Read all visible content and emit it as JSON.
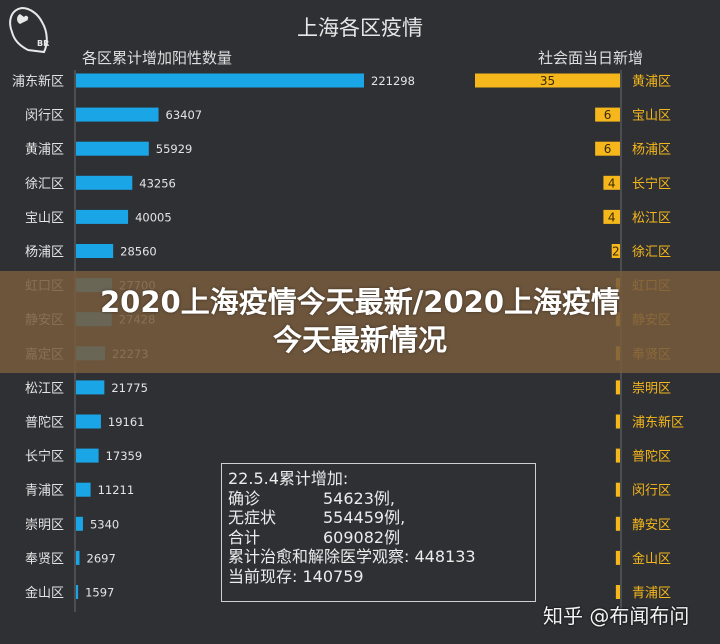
{
  "logo": {
    "text": "BR"
  },
  "chart_data": [
    {
      "type": "bar",
      "orientation": "horizontal",
      "title": "上海各区疫情",
      "subtitle": "各区累计增加阳性数量",
      "categories": [
        "浦东新区",
        "闵行区",
        "黄浦区",
        "徐汇区",
        "宝山区",
        "杨浦区",
        "虹口区",
        "静安区",
        "嘉定区",
        "松江区",
        "普陀区",
        "长宁区",
        "青浦区",
        "崇明区",
        "奉贤区",
        "金山区"
      ],
      "values": [
        221298,
        63407,
        55929,
        43256,
        40005,
        28560,
        27700,
        27428,
        22273,
        21775,
        19161,
        17359,
        11211,
        5340,
        2697,
        1597
      ],
      "color": "#1aa6e6"
    },
    {
      "type": "bar",
      "orientation": "horizontal",
      "subtitle": "社会面当日新增",
      "categories": [
        "黄浦区",
        "宝山区",
        "杨浦区",
        "长宁区",
        "松江区",
        "徐汇区",
        "虹口区",
        "静安区",
        "奉贤区",
        "崇明区",
        "浦东新区",
        "普陀区",
        "闵行区",
        "静安区",
        "金山区",
        "青浦区"
      ],
      "values": [
        35,
        6,
        6,
        4,
        4,
        2,
        1,
        1,
        1,
        1,
        1,
        1,
        1,
        1,
        1,
        1
      ],
      "labels": [
        "35",
        "6",
        "6",
        "4",
        "4",
        "2",
        "",
        "",
        "",
        "",
        "",
        "",
        "",
        "",
        "",
        ""
      ],
      "color": "#f5b71b"
    }
  ],
  "summary": {
    "header": "22.5.4累计增加:",
    "rows": [
      {
        "label": "确诊",
        "value": "54623例,"
      },
      {
        "label": "无症状",
        "value": "554459例,"
      },
      {
        "label": "合计",
        "value": "609082例"
      }
    ],
    "line4": "累计治愈和解除医学观察: 448133",
    "line5": "当前现存: 140759"
  },
  "banner": {
    "line1": "2020上海疫情今天最新/2020上海疫情",
    "line2": "今天最新情况"
  },
  "watermark": "知乎 @布闻布问"
}
